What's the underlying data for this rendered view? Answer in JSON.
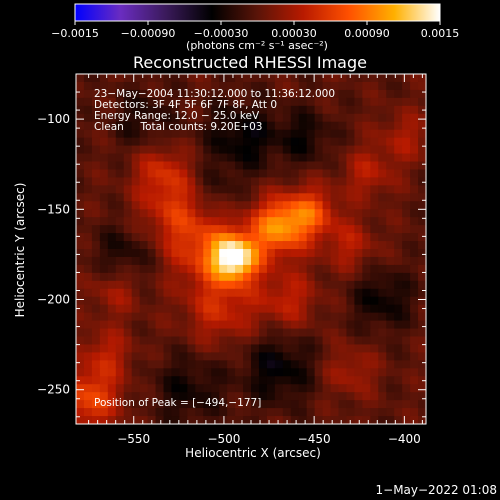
{
  "chart_data": {
    "type": "heatmap",
    "title": "Reconstructed RHESSI Image",
    "xlabel": "Heliocentric X (arcsec)",
    "ylabel": "Heliocentric Y (arcsec)",
    "xlim": [
      -582,
      -388
    ],
    "ylim": [
      -269,
      -75
    ],
    "x_ticks": [
      -550,
      -500,
      -450,
      -400
    ],
    "x_tick_labels": [
      "−550",
      "−500",
      "−450",
      "−400"
    ],
    "y_ticks": [
      -100,
      -150,
      -200,
      -250
    ],
    "y_tick_labels": [
      "−100",
      "−150",
      "−200",
      "−250"
    ],
    "colorbar": {
      "range": [
        -0.0015,
        0.0015
      ],
      "ticks": [
        -0.0015,
        -0.0009,
        -0.0003,
        0.0003,
        0.0009,
        0.0015
      ],
      "tick_labels": [
        "−0.0015",
        "−0.00090",
        "−0.00030",
        "0.00030",
        "0.00090",
        "0.0015"
      ],
      "label": "(photons cm⁻² s⁻¹ asec⁻²)",
      "colors": [
        "#0000ff",
        "#6a2cc0",
        "#3a1a5a",
        "#000000",
        "#5a1408",
        "#b81a00",
        "#ff5000",
        "#ffb000",
        "#ffffff"
      ]
    },
    "annotations": [
      "23−May−2004 11:30:12.000 to 11:36:12.000",
      "Detectors: 3F 4F 5F 6F 7F 8F, Att 0",
      "Energy Range: 12.0 − 25.0 keV",
      "Clean     Total counts: 9.20E+03"
    ],
    "peak_label": "Position of Peak = [−494,−177]",
    "peak": [
      -494,
      -177
    ],
    "footer_date": "1−May−2022 01:08",
    "components": [
      {
        "x": -494,
        "y": -177,
        "amp": 0.00145,
        "sigma": 9
      },
      {
        "x": -470,
        "y": -160,
        "amp": 0.00095,
        "sigma": 11
      },
      {
        "x": -452,
        "y": -152,
        "amp": 0.00065,
        "sigma": 10
      },
      {
        "x": -512,
        "y": -172,
        "amp": 0.0005,
        "sigma": 14
      },
      {
        "x": -528,
        "y": -150,
        "amp": 0.00045,
        "sigma": 14
      },
      {
        "x": -535,
        "y": -128,
        "amp": 0.0004,
        "sigma": 10
      },
      {
        "x": -502,
        "y": -205,
        "amp": 0.00045,
        "sigma": 14
      },
      {
        "x": -465,
        "y": -200,
        "amp": 0.0004,
        "sigma": 12
      },
      {
        "x": -430,
        "y": -170,
        "amp": 0.00035,
        "sigma": 10
      },
      {
        "x": -420,
        "y": -130,
        "amp": 0.00035,
        "sigma": 10
      },
      {
        "x": -400,
        "y": -110,
        "amp": 0.0003,
        "sigma": 10
      },
      {
        "x": -575,
        "y": -255,
        "amp": 0.00065,
        "sigma": 12
      },
      {
        "x": -565,
        "y": -230,
        "amp": 0.00035,
        "sigma": 10
      },
      {
        "x": -560,
        "y": -195,
        "amp": 0.0003,
        "sigma": 10
      },
      {
        "x": -430,
        "y": -240,
        "amp": 0.0003,
        "sigma": 10
      },
      {
        "x": -490,
        "y": -110,
        "amp": -0.0004,
        "sigma": 14
      },
      {
        "x": -545,
        "y": -100,
        "amp": -0.00025,
        "sigma": 12
      },
      {
        "x": -555,
        "y": -175,
        "amp": -0.0003,
        "sigma": 12
      },
      {
        "x": -470,
        "y": -238,
        "amp": -0.0004,
        "sigma": 14
      },
      {
        "x": -520,
        "y": -250,
        "amp": -0.0003,
        "sigma": 14
      },
      {
        "x": -412,
        "y": -200,
        "amp": -0.00035,
        "sigma": 12
      },
      {
        "x": -455,
        "y": -110,
        "amp": -0.0003,
        "sigma": 11
      },
      {
        "x": -505,
        "y": -140,
        "amp": -0.0002,
        "sigma": 9
      }
    ]
  }
}
